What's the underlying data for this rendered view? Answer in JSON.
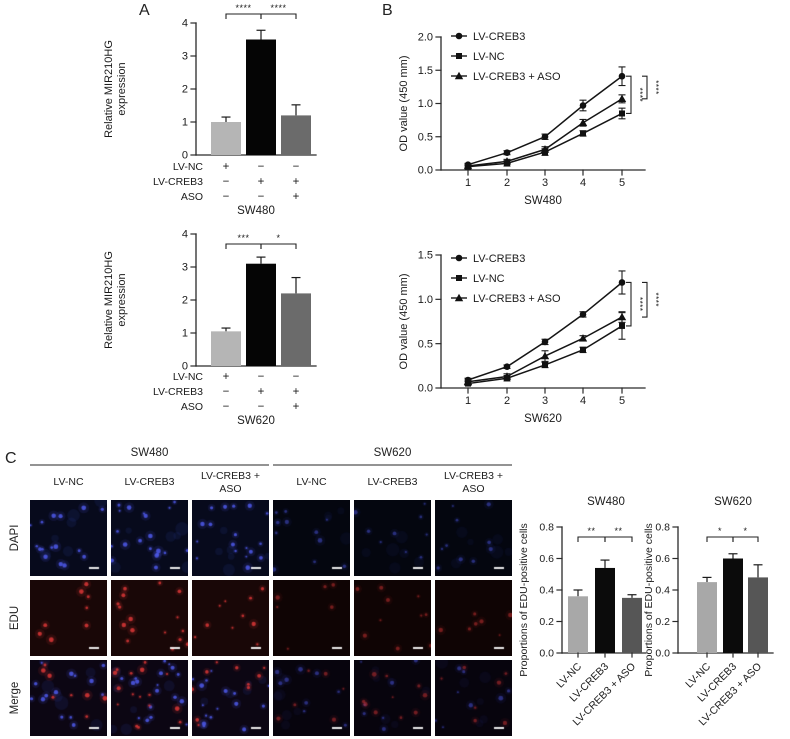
{
  "panels": {
    "a": {
      "label": "A"
    },
    "b": {
      "label": "B"
    },
    "c": {
      "label": "C",
      "groups": [
        {
          "name": "SW480",
          "conditions": [
            "LV-NC",
            "LV-CREB3",
            "LV-CREB3 +\nASO"
          ]
        },
        {
          "name": "SW620",
          "conditions": [
            "LV-NC",
            "LV-CREB3",
            "LV-CREB3 +\nASO"
          ]
        }
      ],
      "stain_rows": [
        "DAPI",
        "EDU",
        "Merge"
      ],
      "microscopy": {
        "dapi_color": "#4a55e0",
        "edu_color": "#d23434",
        "bg": {
          "DAPI": [
            "#070a1c",
            "#04060f"
          ],
          "EDU": [
            "#190707",
            "#0f0404"
          ],
          "Merge": [
            "#0c0613",
            "#07040d"
          ]
        },
        "dapi_counts": [
          16,
          20,
          18,
          11,
          9,
          10
        ],
        "edu_counts": [
          8,
          16,
          10,
          6,
          10,
          7
        ],
        "scale_bar": true
      }
    }
  },
  "chart_data": [
    {
      "id": "A1",
      "type": "bar",
      "panel": "A",
      "cell_line": "SW480",
      "ylabel_lines": [
        "Relative MIR210HG",
        "expression"
      ],
      "ylim": [
        0,
        4
      ],
      "yticks": [
        "0",
        "1",
        "2",
        "3",
        "4"
      ],
      "categories": [
        "LV-NC",
        "LV-CREB3",
        "LV-CREB3 + ASO"
      ],
      "values": [
        1.0,
        3.5,
        1.2
      ],
      "errors": [
        0.15,
        0.28,
        0.32
      ],
      "bar_colors": [
        "#b5b5b5",
        "#050505",
        "#6b6b6b"
      ],
      "significance": [
        {
          "from": 0,
          "to": 1,
          "label": "****"
        },
        {
          "from": 1,
          "to": 2,
          "label": "****"
        }
      ],
      "matrix": [
        {
          "label": "LV-NC",
          "signs": [
            "+",
            "−",
            "−"
          ]
        },
        {
          "label": "LV-CREB3",
          "signs": [
            "−",
            "+",
            "+"
          ]
        },
        {
          "label": "ASO",
          "signs": [
            "−",
            "−",
            "+"
          ]
        }
      ]
    },
    {
      "id": "A2",
      "type": "bar",
      "panel": "A",
      "cell_line": "SW620",
      "ylabel_lines": [
        "Relative MIR210HG",
        "expression"
      ],
      "ylim": [
        0,
        4
      ],
      "yticks": [
        "0",
        "1",
        "2",
        "3",
        "4"
      ],
      "categories": [
        "LV-NC",
        "LV-CREB3",
        "LV-CREB3 + ASO"
      ],
      "values": [
        1.05,
        3.1,
        2.2
      ],
      "errors": [
        0.1,
        0.2,
        0.48
      ],
      "bar_colors": [
        "#b5b5b5",
        "#050505",
        "#6b6b6b"
      ],
      "significance": [
        {
          "from": 0,
          "to": 1,
          "label": "***"
        },
        {
          "from": 1,
          "to": 2,
          "label": "*"
        }
      ],
      "matrix": [
        {
          "label": "LV-NC",
          "signs": [
            "+",
            "−",
            "−"
          ]
        },
        {
          "label": "LV-CREB3",
          "signs": [
            "−",
            "+",
            "+"
          ]
        },
        {
          "label": "ASO",
          "signs": [
            "−",
            "−",
            "+"
          ]
        }
      ]
    },
    {
      "id": "B1",
      "type": "line",
      "panel": "B",
      "cell_line": "SW480",
      "ylabel": "OD value (450 mm)",
      "ylim": [
        0,
        2.0
      ],
      "yticks": [
        "0.0",
        "0.5",
        "1.0",
        "1.5",
        "2.0"
      ],
      "x": [
        1,
        2,
        3,
        4,
        5
      ],
      "series": [
        {
          "name": "LV-CREB3",
          "marker": "circle",
          "values": [
            0.08,
            0.26,
            0.5,
            0.97,
            1.41
          ],
          "errors": [
            0.02,
            0.03,
            0.04,
            0.08,
            0.14
          ]
        },
        {
          "name": "LV-NC",
          "marker": "square",
          "values": [
            0.05,
            0.1,
            0.27,
            0.55,
            0.85
          ],
          "errors": [
            0.02,
            0.04,
            0.05,
            0.04,
            0.08
          ]
        },
        {
          "name": "LV-CREB3 + ASO",
          "marker": "triangle",
          "values": [
            0.06,
            0.13,
            0.31,
            0.71,
            1.07
          ],
          "errors": [
            0.02,
            0.03,
            0.04,
            0.05,
            0.06
          ]
        }
      ],
      "significance": [
        {
          "from": "LV-CREB3",
          "to": "LV-NC",
          "label": "****"
        },
        {
          "from": "LV-CREB3",
          "to": "LV-CREB3 + ASO",
          "label": "****"
        }
      ]
    },
    {
      "id": "B2",
      "type": "line",
      "panel": "B",
      "cell_line": "SW620",
      "ylabel": "OD value (450 mm)",
      "ylim": [
        0,
        1.5
      ],
      "yticks": [
        "0.0",
        "0.5",
        "1.0",
        "1.5"
      ],
      "x": [
        1,
        2,
        3,
        4,
        5
      ],
      "series": [
        {
          "name": "LV-CREB3",
          "marker": "circle",
          "values": [
            0.09,
            0.24,
            0.52,
            0.83,
            1.19
          ],
          "errors": [
            0.02,
            0.02,
            0.03,
            0.03,
            0.13
          ]
        },
        {
          "name": "LV-NC",
          "marker": "square",
          "values": [
            0.05,
            0.11,
            0.26,
            0.43,
            0.7
          ],
          "errors": [
            0.02,
            0.03,
            0.03,
            0.03,
            0.15
          ]
        },
        {
          "name": "LV-CREB3 + ASO",
          "marker": "triangle",
          "values": [
            0.07,
            0.13,
            0.36,
            0.56,
            0.8
          ],
          "errors": [
            0.02,
            0.03,
            0.06,
            0.03,
            0.06
          ]
        }
      ],
      "significance": [
        {
          "from": "LV-CREB3",
          "to": "LV-NC",
          "label": "****"
        },
        {
          "from": "LV-CREB3",
          "to": "LV-CREB3 + ASO",
          "label": "****"
        }
      ]
    },
    {
      "id": "C1",
      "type": "bar",
      "panel": "C",
      "title": "SW480",
      "ylabel": "Proportions of EDU-positive cells",
      "ylim": [
        0,
        0.8
      ],
      "yticks": [
        "0.0",
        "0.2",
        "0.4",
        "0.6",
        "0.8"
      ],
      "categories": [
        "LV-NC",
        "LV-CREB3",
        "LV-CREB3 + ASO"
      ],
      "values": [
        0.36,
        0.54,
        0.35
      ],
      "errors": [
        0.04,
        0.05,
        0.02
      ],
      "bar_colors": [
        "#a8a8a8",
        "#0b0b0b",
        "#565656"
      ],
      "significance": [
        {
          "from": 0,
          "to": 1,
          "label": "**"
        },
        {
          "from": 1,
          "to": 2,
          "label": "**"
        }
      ]
    },
    {
      "id": "C2",
      "type": "bar",
      "panel": "C",
      "title": "SW620",
      "ylabel": "Proportions of EDU-positive cells",
      "ylim": [
        0,
        0.8
      ],
      "yticks": [
        "0.0",
        "0.2",
        "0.4",
        "0.6",
        "0.8"
      ],
      "categories": [
        "LV-NC",
        "LV-CREB3",
        "LV-CREB3 + ASO"
      ],
      "values": [
        0.45,
        0.6,
        0.48
      ],
      "errors": [
        0.03,
        0.03,
        0.08
      ],
      "bar_colors": [
        "#a8a8a8",
        "#0b0b0b",
        "#565656"
      ],
      "significance": [
        {
          "from": 0,
          "to": 1,
          "label": "*"
        },
        {
          "from": 1,
          "to": 2,
          "label": "*"
        }
      ]
    }
  ]
}
